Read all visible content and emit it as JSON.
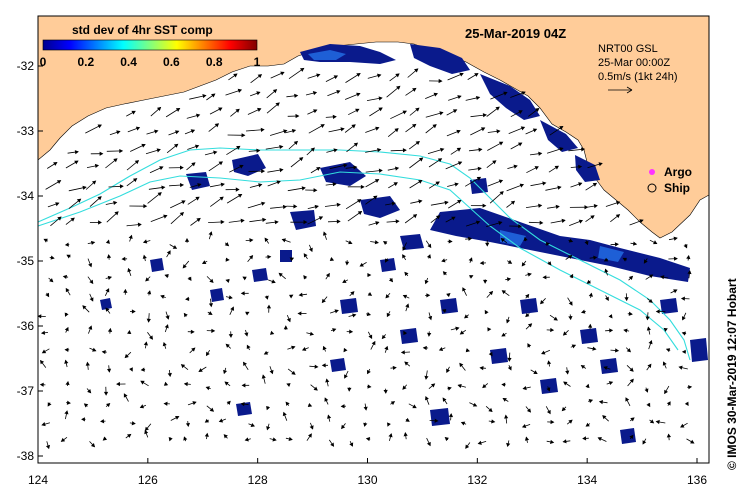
{
  "map": {
    "date_title": "25-Mar-2019 04Z",
    "colorbar": {
      "title": "std dev of 4hr SST comp",
      "ticks": [
        "0",
        "0.2",
        "0.4",
        "0.6",
        "0.8",
        "1"
      ]
    },
    "model_info": {
      "line1": "NRT00 GSL",
      "line2": "25-Mar 00:00Z",
      "line3": "0.5m/s (1kt 24h)"
    },
    "legend": {
      "argo_label": "Argo",
      "ship_label": "Ship"
    },
    "credit": "© IMOS 30-Mar-2019 12:07 Hobart",
    "x_ticks": [
      "124",
      "126",
      "128",
      "130",
      "132",
      "134",
      "136"
    ],
    "y_ticks": [
      "-32",
      "-33",
      "-34",
      "-35",
      "-36",
      "-37",
      "-38"
    ],
    "colors": {
      "land": "#FFCC99",
      "sst_patch": "#0a1a8c",
      "sst_patch_light": "#1e5fd6",
      "current_contour": "#33dddd",
      "arrow": "#000000",
      "argo_marker": "#ff33ff"
    }
  }
}
